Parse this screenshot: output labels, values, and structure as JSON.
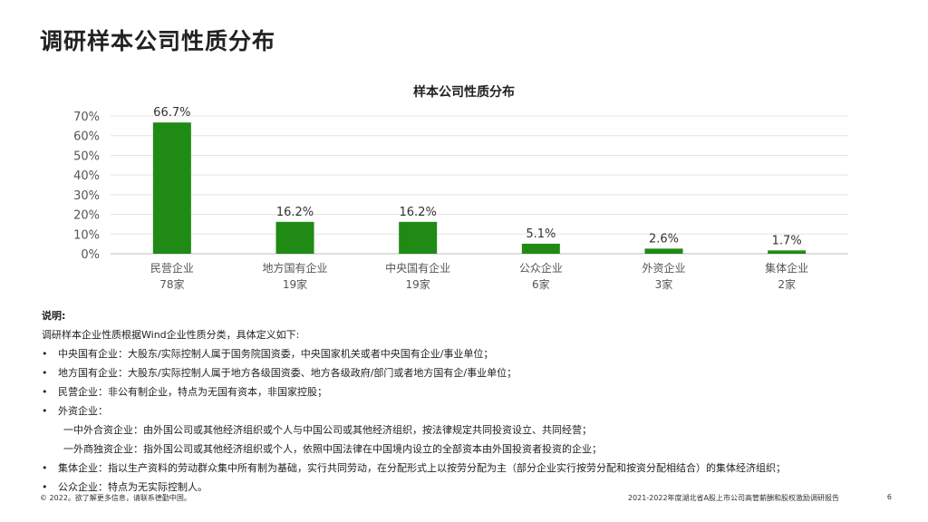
{
  "page": {
    "title": "调研样本公司性质分布"
  },
  "chart_data": {
    "type": "bar",
    "title": "样本公司性质分布",
    "xlabel": "",
    "ylabel": "",
    "categories": [
      "民营企业",
      "地方国有企业",
      "中央国有企业",
      "公众企业",
      "外资企业",
      "集体企业"
    ],
    "counts": [
      "78家",
      "19家",
      "19家",
      "6家",
      "3家",
      "2家"
    ],
    "values": [
      66.7,
      16.2,
      16.2,
      5.1,
      2.6,
      1.7
    ],
    "value_labels": [
      "66.7%",
      "16.2%",
      "16.2%",
      "5.1%",
      "2.6%",
      "1.7%"
    ],
    "ylim": [
      0,
      70
    ],
    "yticks": [
      0,
      10,
      20,
      30,
      40,
      50,
      60,
      70
    ],
    "ytick_labels": [
      "0%",
      "10%",
      "20%",
      "30%",
      "40%",
      "50%",
      "60%",
      "70%"
    ],
    "grid": true,
    "bar_color": "#1f8a14"
  },
  "notes": {
    "heading": "说明:",
    "intro": "调研样本企业性质根据Wind企业性质分类，具体定义如下:",
    "items": [
      "中央国有企业：大股东/实际控制人属于国务院国资委，中央国家机关或者中央国有企业/事业单位；",
      "地方国有企业：大股东/实际控制人属于地方各级国资委、地方各级政府/部门或者地方国有企/事业单位；",
      "民营企业：非公有制企业，特点为无国有资本，非国家控股；",
      "外资企业："
    ],
    "sub_items": [
      "一中外合资企业：由外国公司或其他经济组织或个人与中国公司或其他经济组织，按法律规定共同投资设立、共同经营；",
      "一外商独资企业：指外国公司或其他经济组织或个人，依照中国法律在中国境内设立的全部资本由外国投资者投资的企业；"
    ],
    "items_after": [
      "集体企业：指以生产资料的劳动群众集中所有制为基础，实行共同劳动，在分配形式上以按劳分配为主（部分企业实行按劳分配和按资分配相结合）的集体经济组织；",
      "公众企业：特点为无实际控制人。"
    ]
  },
  "footer": {
    "copyright": "© 2022。欲了解更多信息，请联系德勤中国。",
    "report_title": "2021-2022年度湖北省A股上市公司高管薪酬和股权激励调研报告",
    "page_number": "6"
  }
}
